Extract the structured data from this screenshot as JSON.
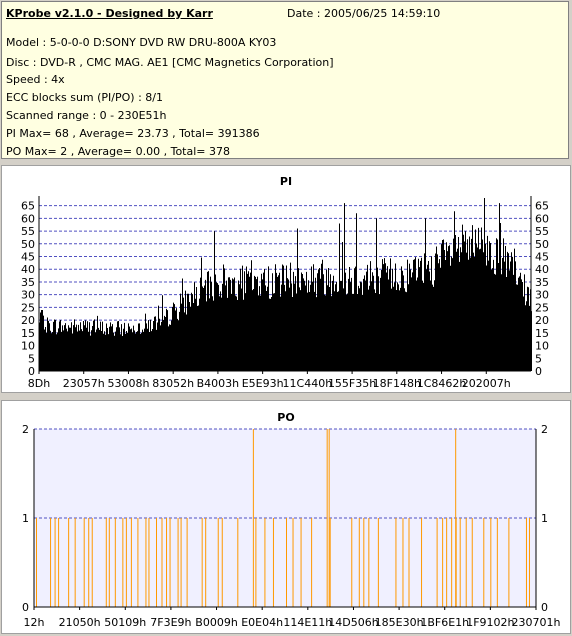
{
  "header": {
    "title": "KProbe v2.1.0 - Designed by Karr",
    "date": "Date : 2005/06/25 14:59:10",
    "lines": [
      "Model : 5-0-0-0 D:SONY    DVD RW DRU-800A  KY03",
      "Disc : DVD-R , CMC MAG. AE1 [CMC Magnetics Corporation]",
      "Speed : 4x",
      "ECC blocks sum (PI/PO) : 8/1",
      "Scanned range : 0 - 230E51h",
      "PI Max= 68 , Average= 23.73 , Total= 391386",
      "PO Max= 2 , Average= 0.00 , Total= 378"
    ]
  },
  "colors": {
    "pi_fill": "#000000",
    "po_line": "#ff9900",
    "po_bg": "#f0f0ff",
    "title": "#000080",
    "grid": "#5050c0"
  },
  "chart_data": [
    {
      "type": "area",
      "title": "PI",
      "ylim": [
        0,
        68
      ],
      "yticks": [
        0,
        5,
        10,
        15,
        20,
        25,
        30,
        35,
        40,
        45,
        50,
        55,
        60,
        65
      ],
      "grid": true,
      "xticks": [
        "8Dh",
        "23057h",
        "53008h",
        "83052h",
        "B4003h",
        "E5E93h",
        "11C440h",
        "155F35h",
        "18F148h",
        "1C8462h",
        "202007h"
      ],
      "series": [
        {
          "profile_pct": [
            0,
            5,
            10,
            15,
            20,
            25,
            30,
            35,
            40,
            45,
            50,
            55,
            60,
            65,
            70,
            75,
            80,
            85,
            90,
            95,
            100
          ],
          "profile_avg": [
            18,
            17,
            17,
            16,
            17,
            19,
            27,
            33,
            34,
            34,
            35,
            35,
            36,
            36,
            37,
            37,
            40,
            47,
            48,
            42,
            27
          ],
          "peaks": [
            {
              "pos_pct": 0.5,
              "value": 24
            },
            {
              "pos_pct": 35.5,
              "value": 55
            },
            {
              "pos_pct": 52.5,
              "value": 56
            },
            {
              "pos_pct": 61.0,
              "value": 58
            },
            {
              "pos_pct": 62.0,
              "value": 66
            },
            {
              "pos_pct": 64.5,
              "value": 62
            },
            {
              "pos_pct": 68.5,
              "value": 60
            },
            {
              "pos_pct": 78.5,
              "value": 60
            },
            {
              "pos_pct": 90.5,
              "value": 68
            },
            {
              "pos_pct": 93.5,
              "value": 66
            }
          ]
        }
      ]
    },
    {
      "type": "bar",
      "title": "PO",
      "ylim": [
        0,
        2
      ],
      "yticks": [
        0,
        1,
        2
      ],
      "grid": true,
      "xticks": [
        "12h",
        "21050h",
        "50109h",
        "7F3E9h",
        "B0009h",
        "E0E04h",
        "114E11h",
        "14D506h",
        "185E30h",
        "1BF6E1h",
        "1F9102h",
        "230701h"
      ],
      "series": [
        {
          "events_pct": [
            0.5,
            3.3,
            4.2,
            4.9,
            6.9,
            8.2,
            10.0,
            10.9,
            11.6,
            14.4,
            15.0,
            16.2,
            17.7,
            18.4,
            19.4,
            20.7,
            22.3,
            22.9,
            24.4,
            25.5,
            26.4,
            27.1,
            28.7,
            29.3,
            30.5,
            33.5,
            34.2,
            36.7,
            37.5,
            40.6,
            44.2,
            46.0,
            47.7,
            50.3,
            51.6,
            53.2,
            55.3,
            59.0,
            63.3,
            64.8,
            65.7,
            66.7,
            68.6,
            72.1,
            73.5,
            74.7,
            77.2,
            80.3,
            81.4,
            82.2,
            83.2,
            84.1,
            84.9,
            86.1,
            87.3,
            89.6,
            91.0,
            92.3,
            94.6,
            98.1,
            98.7
          ],
          "events_value": 1,
          "peaks_pct": [
            43.7,
            58.4,
            58.8,
            84.0
          ],
          "peaks_value": 2
        }
      ]
    }
  ]
}
